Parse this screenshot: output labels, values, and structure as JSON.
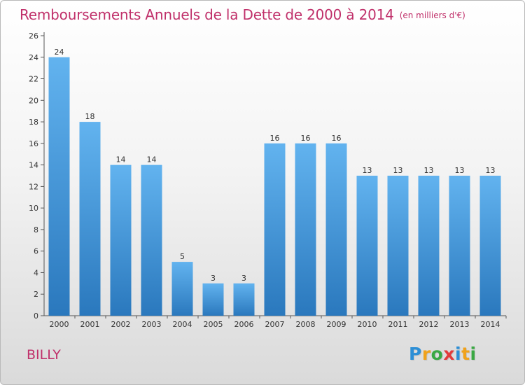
{
  "chart_data": {
    "type": "bar",
    "title": "Remboursements Annuels de la Dette de 2000 à 2014",
    "subtitle": "(en milliers d'€)",
    "categories": [
      "2000",
      "2001",
      "2002",
      "2003",
      "2004",
      "2005",
      "2006",
      "2007",
      "2008",
      "2009",
      "2010",
      "2011",
      "2012",
      "2013",
      "2014"
    ],
    "values": [
      24,
      18,
      14,
      14,
      5,
      3,
      3,
      16,
      16,
      16,
      13,
      13,
      13,
      13,
      13
    ],
    "data_labels": [
      "24",
      "18",
      "14",
      "14",
      "5",
      "3",
      "3",
      "16",
      "16",
      "16",
      "13",
      "13",
      "13",
      "13",
      "13"
    ],
    "ylim": [
      0,
      26
    ],
    "y_ticks": [
      0,
      2,
      4,
      6,
      8,
      10,
      12,
      14,
      16,
      18,
      20,
      22,
      24,
      26
    ],
    "grid": false,
    "bar_color": "#3f90d4",
    "bar_color_light": "#62b3ef",
    "bar_color_dark": "#2a78bd"
  },
  "footer": {
    "commune": "BILLY",
    "logo_text": "Proxiti",
    "logo_colors": [
      "#2d8fd6",
      "#f0a21b",
      "#3aa843",
      "#e23b3b",
      "#2d8fd6",
      "#f0a21b",
      "#3aa843"
    ]
  },
  "colors": {
    "title": "#c0306a"
  }
}
